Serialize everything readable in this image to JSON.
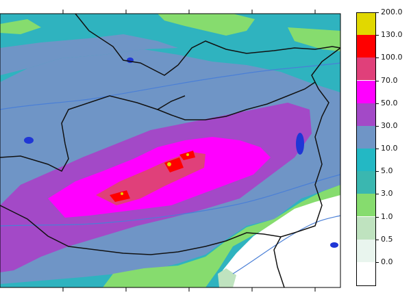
{
  "legend": {
    "labels": [
      "200.0",
      "130.0",
      "100.0",
      "70.0",
      "50.0",
      "30.0",
      "10.0",
      "5.0",
      "3.0",
      "1.0",
      "0.5",
      "0.0"
    ],
    "colors": [
      "#e1d800",
      "#ff0000",
      "#e0407a",
      "#ff00ff",
      "#a349c7",
      "#6f95c6",
      "#23b8c4",
      "#3ab7b0",
      "#86dc6e",
      "#bfe3bf",
      "#e9f5ee",
      "#ffffff"
    ]
  },
  "palette": {
    "background": "#2fb3bf",
    "light_blue": "#6f95c6",
    "purple": "#a349c7",
    "magenta": "#ff00ff",
    "pink_red": "#e0407a",
    "red": "#ff0000",
    "yellow": "#e1d800",
    "green": "#86dc6e",
    "pale_green": "#bfe3bf",
    "white": "#ffffff",
    "river": "#4a7fd6",
    "lake": "#1f36d6",
    "border": "#111111"
  }
}
